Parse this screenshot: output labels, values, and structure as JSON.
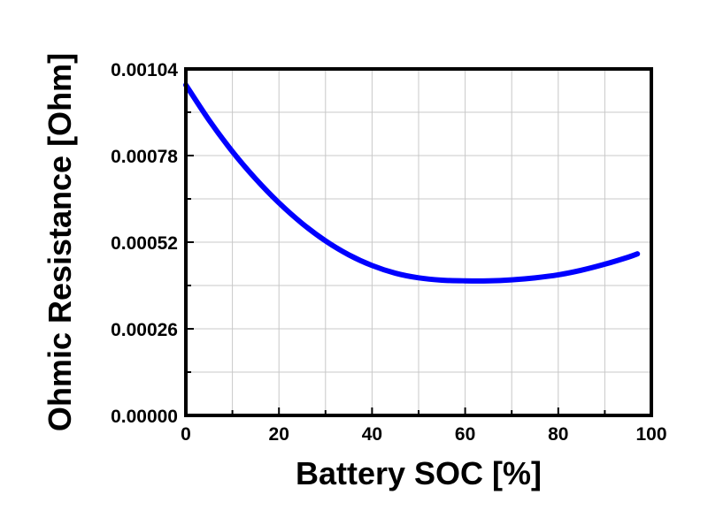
{
  "chart_data": {
    "type": "line",
    "xlabel": "Battery SOC [%]",
    "ylabel": "Ohmic Resistance [Ohm]",
    "xlim": [
      0,
      100
    ],
    "ylim": [
      0,
      0.00104
    ],
    "x_ticks": [
      0,
      20,
      40,
      60,
      80,
      100
    ],
    "x_tick_labels": [
      "0",
      "20",
      "40",
      "60",
      "80",
      "100"
    ],
    "y_ticks": [
      0,
      0.00026,
      0.00052,
      0.00078,
      0.00104
    ],
    "y_tick_labels": [
      "0.00000",
      "0.00026",
      "0.00052",
      "0.00078",
      "0.00104"
    ],
    "grid": true,
    "series": [
      {
        "color": "#0000ff",
        "x": [
          0,
          5,
          10,
          15,
          20,
          25,
          30,
          35,
          40,
          45,
          50,
          55,
          60,
          65,
          70,
          75,
          80,
          85,
          90,
          95,
          97
        ],
        "y": [
          0.000992,
          0.000886,
          0.000792,
          0.00071,
          0.000638,
          0.000576,
          0.000524,
          0.000482,
          0.00045,
          0.000427,
          0.000413,
          0.000406,
          0.000404,
          0.000404,
          0.000407,
          0.000413,
          0.000422,
          0.000436,
          0.000454,
          0.000475,
          0.000485
        ]
      }
    ]
  }
}
